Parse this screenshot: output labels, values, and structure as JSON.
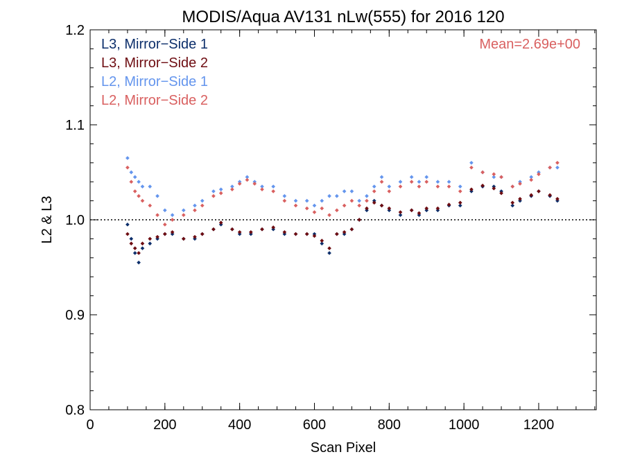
{
  "chart_data": {
    "type": "scatter",
    "title": "MODIS/Aqua AV131 nLw(555) for 2016 120",
    "xlabel": "Scan Pixel",
    "ylabel": "L2 & L3",
    "xlim": [
      0,
      1354
    ],
    "ylim": [
      0.8,
      1.2
    ],
    "x_ticks": [
      "0",
      "200",
      "400",
      "600",
      "800",
      "1000",
      "1200"
    ],
    "y_ticks": [
      "0.8",
      "0.9",
      "1.0",
      "1.1",
      "1.2"
    ],
    "reference_line": {
      "y": 1.0,
      "style": "dotted"
    },
    "annotation": "Mean=2.69e+00",
    "legend_position": "top-left",
    "series": [
      {
        "name": "L3, Mirror−Side 1",
        "color": "#0d2f6b",
        "x": [
          100,
          110,
          120,
          130,
          140,
          160,
          180,
          200,
          220,
          250,
          280,
          300,
          330,
          350,
          380,
          400,
          430,
          460,
          490,
          520,
          550,
          580,
          600,
          620,
          640,
          660,
          680,
          700,
          720,
          740,
          760,
          780,
          800,
          830,
          860,
          880,
          900,
          930,
          960,
          990,
          1020,
          1050,
          1080,
          1100,
          1130,
          1150,
          1180,
          1200,
          1230,
          1250
        ],
        "y": [
          0.995,
          0.98,
          0.965,
          0.955,
          0.97,
          0.975,
          0.98,
          0.985,
          0.985,
          0.98,
          0.98,
          0.985,
          0.99,
          0.995,
          0.99,
          0.985,
          0.985,
          0.99,
          0.99,
          0.985,
          0.985,
          0.985,
          0.985,
          0.975,
          0.965,
          0.985,
          0.985,
          0.99,
          1.0,
          1.01,
          1.02,
          1.015,
          1.01,
          1.005,
          1.01,
          1.005,
          1.01,
          1.01,
          1.015,
          1.015,
          1.03,
          1.035,
          1.035,
          1.03,
          1.015,
          1.02,
          1.025,
          1.03,
          1.025,
          1.02
        ]
      },
      {
        "name": "L3, Mirror−Side 2",
        "color": "#6e0d12",
        "x": [
          100,
          110,
          120,
          130,
          140,
          160,
          180,
          200,
          220,
          250,
          280,
          300,
          330,
          350,
          380,
          400,
          430,
          460,
          490,
          520,
          550,
          580,
          600,
          620,
          640,
          660,
          680,
          700,
          720,
          740,
          760,
          780,
          800,
          830,
          860,
          880,
          900,
          930,
          960,
          990,
          1020,
          1050,
          1080,
          1100,
          1130,
          1150,
          1180,
          1200,
          1230,
          1250
        ],
        "y": [
          0.985,
          0.975,
          0.97,
          0.965,
          0.975,
          0.98,
          0.982,
          0.985,
          0.987,
          0.98,
          0.982,
          0.985,
          0.99,
          0.997,
          0.99,
          0.987,
          0.987,
          0.99,
          0.992,
          0.987,
          0.985,
          0.985,
          0.983,
          0.978,
          0.97,
          0.985,
          0.987,
          0.99,
          1.0,
          1.012,
          1.018,
          1.015,
          1.012,
          1.008,
          1.01,
          1.007,
          1.012,
          1.012,
          1.016,
          1.018,
          1.032,
          1.036,
          1.033,
          1.028,
          1.018,
          1.022,
          1.026,
          1.03,
          1.026,
          1.022
        ]
      },
      {
        "name": "L2, Mirror−Side 1",
        "color": "#6495ed",
        "x": [
          100,
          110,
          120,
          130,
          140,
          160,
          180,
          200,
          220,
          250,
          280,
          300,
          330,
          350,
          380,
          400,
          420,
          440,
          460,
          490,
          520,
          550,
          580,
          600,
          620,
          640,
          660,
          680,
          700,
          720,
          740,
          760,
          780,
          800,
          830,
          860,
          880,
          900,
          930,
          960,
          990,
          1020,
          1050,
          1080,
          1100,
          1130,
          1150,
          1180,
          1200,
          1230,
          1250
        ],
        "y": [
          1.065,
          1.05,
          1.045,
          1.04,
          1.035,
          1.035,
          1.025,
          1.01,
          1.005,
          1.01,
          1.015,
          1.02,
          1.03,
          1.032,
          1.035,
          1.04,
          1.045,
          1.04,
          1.035,
          1.035,
          1.025,
          1.02,
          1.02,
          1.015,
          1.02,
          1.025,
          1.025,
          1.03,
          1.03,
          1.02,
          1.025,
          1.035,
          1.045,
          1.035,
          1.04,
          1.045,
          1.04,
          1.045,
          1.04,
          1.04,
          1.035,
          1.06,
          1.05,
          1.045,
          1.045,
          1.035,
          1.04,
          1.045,
          1.05,
          1.055,
          1.055
        ]
      },
      {
        "name": "L2, Mirror−Side 2",
        "color": "#d96060",
        "x": [
          100,
          110,
          120,
          130,
          140,
          160,
          180,
          200,
          220,
          250,
          280,
          300,
          330,
          350,
          380,
          400,
          420,
          440,
          460,
          490,
          520,
          550,
          580,
          600,
          620,
          640,
          660,
          680,
          700,
          720,
          740,
          760,
          780,
          800,
          830,
          860,
          880,
          900,
          930,
          960,
          990,
          1020,
          1050,
          1080,
          1100,
          1130,
          1150,
          1180,
          1200,
          1230,
          1250
        ],
        "y": [
          1.055,
          1.04,
          1.03,
          1.025,
          1.02,
          1.015,
          1.005,
          0.995,
          1.0,
          1.005,
          1.01,
          1.015,
          1.025,
          1.028,
          1.032,
          1.038,
          1.042,
          1.038,
          1.032,
          1.03,
          1.02,
          1.015,
          1.012,
          1.008,
          1.012,
          1.005,
          1.01,
          1.015,
          1.02,
          1.015,
          1.02,
          1.03,
          1.04,
          1.03,
          1.035,
          1.04,
          1.035,
          1.04,
          1.035,
          1.035,
          1.03,
          1.055,
          1.05,
          1.048,
          1.045,
          1.035,
          1.038,
          1.042,
          1.048,
          1.055,
          1.06
        ]
      }
    ]
  }
}
